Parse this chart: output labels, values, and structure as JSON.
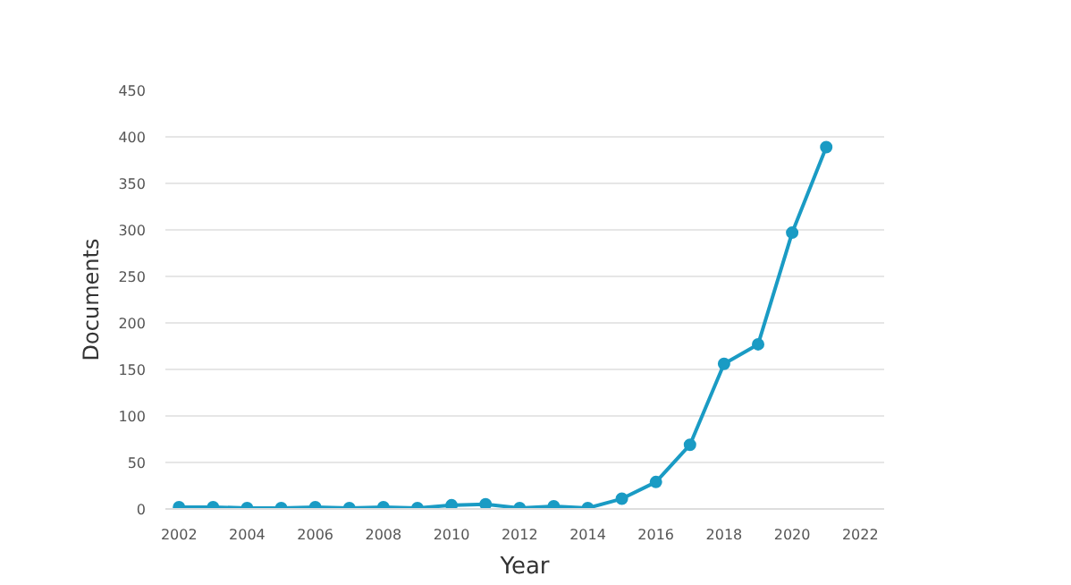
{
  "chart_data": {
    "type": "line",
    "xlabel": "Year",
    "ylabel": "Documents",
    "x": [
      2002,
      2003,
      2004,
      2005,
      2006,
      2007,
      2008,
      2009,
      2010,
      2011,
      2012,
      2013,
      2014,
      2015,
      2016,
      2017,
      2018,
      2019,
      2020,
      2021
    ],
    "series": [
      {
        "color": "#1a9bc4",
        "values": [
          2,
          2,
          1,
          1,
          2,
          1,
          2,
          1,
          4,
          5,
          1,
          3,
          1,
          11,
          29,
          69,
          156,
          177,
          297,
          389
        ]
      }
    ],
    "xlim": [
      2001.6,
      2022.7
    ],
    "xticks": [
      2002,
      2004,
      2006,
      2008,
      2010,
      2012,
      2014,
      2016,
      2018,
      2020,
      2022
    ],
    "ylim": [
      0,
      450
    ],
    "yticks": [
      0,
      50,
      100,
      150,
      200,
      250,
      300,
      350,
      400,
      450
    ],
    "grid": "y",
    "marker": "circle",
    "line_style": "solid"
  }
}
